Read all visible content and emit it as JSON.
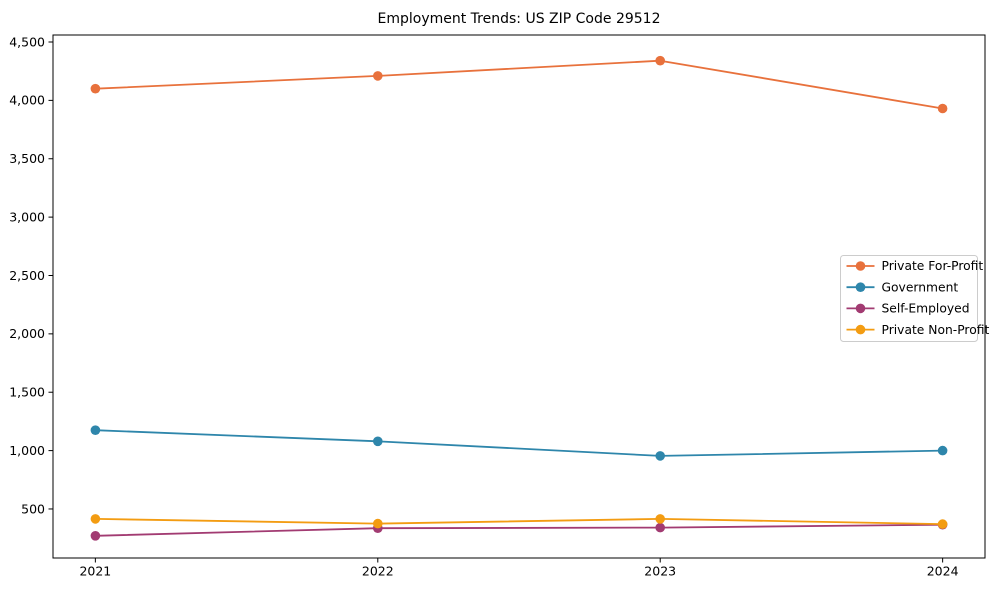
{
  "window": {
    "background": "#ffffff",
    "spine_color": "#000000",
    "tick_color": "#000000",
    "legend_border_color": "#cccccc",
    "legend_background": "#ffffff"
  },
  "chart_data": {
    "type": "line",
    "title": "Employment Trends: US ZIP Code 29512",
    "xlabel": "",
    "ylabel": "",
    "grid": false,
    "legend_position": "center right",
    "x": [
      2021,
      2022,
      2023,
      2024
    ],
    "xtick_labels": [
      "2021",
      "2022",
      "2023",
      "2024"
    ],
    "ytick_values": [
      500,
      1000,
      1500,
      2000,
      2500,
      3000,
      3500,
      4000,
      4500
    ],
    "ytick_labels": [
      "500",
      "1,000",
      "1,500",
      "2,000",
      "2,500",
      "3,000",
      "3,500",
      "4,000",
      "4,500"
    ],
    "xlim": [
      2020.85,
      2024.15
    ],
    "ylim": [
      80,
      4560
    ],
    "marker": "o",
    "series": [
      {
        "name": "Private For-Profit",
        "color": "#E8713C",
        "values": [
          4100,
          4210,
          4340,
          3930
        ]
      },
      {
        "name": "Government",
        "color": "#2E86AB",
        "values": [
          1175,
          1080,
          955,
          1000
        ]
      },
      {
        "name": "Self-Employed",
        "color": "#A23B72",
        "values": [
          270,
          335,
          340,
          365
        ]
      },
      {
        "name": "Private Non-Profit",
        "color": "#F39C12",
        "values": [
          415,
          375,
          415,
          370
        ]
      }
    ]
  }
}
